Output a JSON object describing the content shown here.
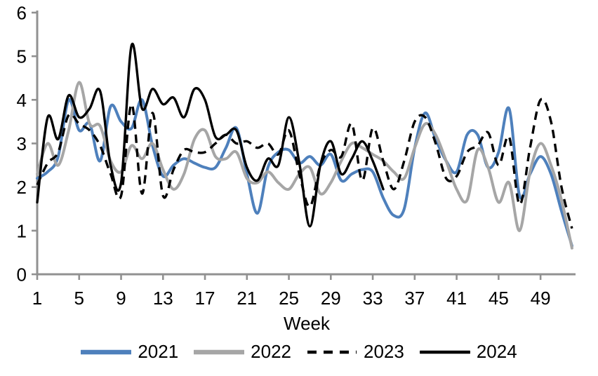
{
  "chart_data": {
    "type": "line",
    "title": "",
    "xlabel": "Week",
    "ylabel": "",
    "xlim": [
      1,
      52
    ],
    "ylim": [
      0,
      6
    ],
    "grid": false,
    "legend_position": "bottom",
    "axis_color": "#919191",
    "text_color": "#000000",
    "x_ticks": [
      1,
      5,
      9,
      13,
      17,
      21,
      25,
      29,
      33,
      37,
      41,
      45,
      49
    ],
    "y_ticks": [
      0,
      1,
      2,
      3,
      4,
      5,
      6
    ],
    "x": [
      1,
      2,
      3,
      4,
      5,
      6,
      7,
      8,
      9,
      10,
      11,
      12,
      13,
      14,
      15,
      16,
      17,
      18,
      19,
      20,
      21,
      22,
      23,
      24,
      25,
      26,
      27,
      28,
      29,
      30,
      31,
      32,
      33,
      34,
      35,
      36,
      37,
      38,
      39,
      40,
      41,
      42,
      43,
      44,
      45,
      46,
      47,
      48,
      49,
      50,
      51,
      52
    ],
    "series": [
      {
        "name": "2021",
        "color": "#4E80BC",
        "style": "solid",
        "values": [
          2.2,
          2.35,
          2.7,
          4.0,
          3.3,
          3.45,
          2.6,
          3.85,
          3.5,
          3.35,
          4.0,
          2.95,
          2.25,
          2.5,
          2.65,
          2.55,
          2.45,
          2.45,
          2.9,
          3.35,
          2.3,
          1.4,
          2.45,
          2.8,
          2.85,
          2.55,
          2.7,
          2.5,
          2.75,
          2.15,
          2.3,
          2.4,
          2.35,
          1.75,
          1.35,
          1.5,
          2.9,
          3.7,
          3.1,
          2.6,
          2.35,
          3.2,
          3.2,
          2.45,
          2.8,
          3.8,
          1.8,
          2.3,
          2.7,
          2.3,
          1.45,
          0.65
        ]
      },
      {
        "name": "2022",
        "color": "#A6A6A6",
        "style": "solid",
        "values": [
          2.3,
          3.0,
          2.5,
          3.3,
          4.4,
          3.45,
          3.4,
          2.6,
          2.35,
          2.95,
          2.65,
          3.0,
          2.4,
          1.95,
          2.3,
          3.1,
          3.3,
          2.7,
          2.65,
          2.8,
          2.2,
          2.1,
          2.35,
          2.1,
          1.95,
          2.3,
          2.45,
          1.85,
          2.1,
          2.6,
          3.0,
          2.9,
          2.75,
          2.6,
          2.35,
          2.2,
          2.9,
          3.45,
          3.2,
          2.6,
          1.95,
          1.7,
          2.85,
          2.45,
          1.65,
          2.1,
          1.0,
          2.35,
          3.0,
          2.5,
          1.7,
          0.6
        ]
      },
      {
        "name": "2023",
        "color": "#000000",
        "style": "dashed",
        "values": [
          2.05,
          2.55,
          2.8,
          3.65,
          3.45,
          3.3,
          2.95,
          2.3,
          1.8,
          3.9,
          1.85,
          3.7,
          1.8,
          2.4,
          2.85,
          2.8,
          2.8,
          3.0,
          3.2,
          3.0,
          3.05,
          2.9,
          3.0,
          2.75,
          3.3,
          2.3,
          1.55,
          2.5,
          2.85,
          2.7,
          3.45,
          2.15,
          3.35,
          2.6,
          1.95,
          2.6,
          3.5,
          3.6,
          3.0,
          2.2,
          2.25,
          2.8,
          2.95,
          3.25,
          2.5,
          3.15,
          1.6,
          2.9,
          4.0,
          3.5,
          2.0,
          1.05
        ]
      },
      {
        "name": "2024",
        "color": "#000000",
        "style": "solid",
        "values": [
          1.65,
          3.6,
          3.1,
          4.1,
          3.6,
          3.8,
          4.2,
          2.5,
          2.1,
          5.25,
          3.8,
          4.25,
          3.9,
          4.05,
          3.6,
          4.25,
          4.0,
          3.15,
          3.2,
          3.3,
          2.45,
          2.15,
          2.65,
          2.5,
          3.6,
          2.55,
          1.1,
          2.5,
          3.05,
          2.3,
          2.65,
          3.05,
          2.6,
          1.95
        ]
      }
    ]
  }
}
